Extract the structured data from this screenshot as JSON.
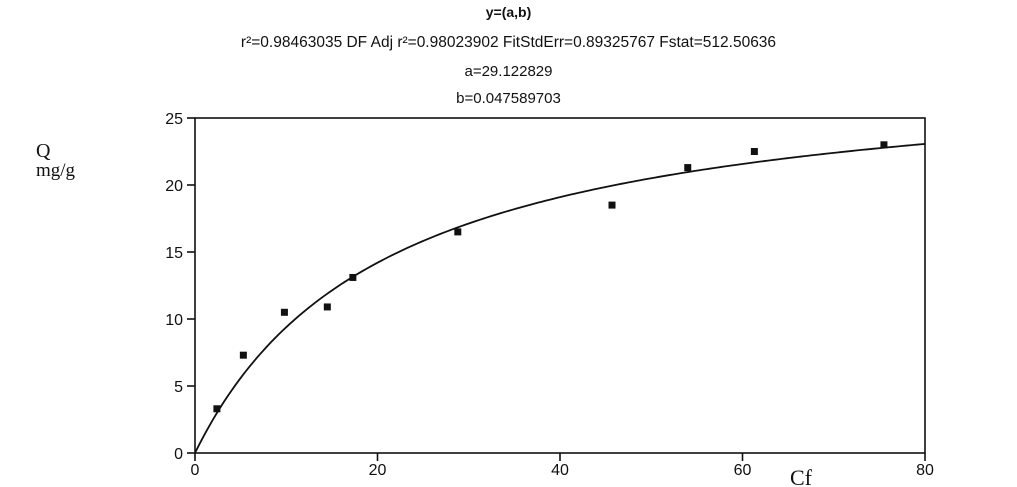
{
  "header": {
    "equation": "y=(a,b)",
    "stats": "r²=0.98463035  DF Adj r²=0.98023902  FitStdErr=0.89325767  Fstat=512.50636",
    "param_a": "a=29.122829",
    "param_b": "b=0.047589703"
  },
  "chart_data": {
    "type": "scatter",
    "title": "y=(a,b)",
    "xlabel": "Cf",
    "ylabel": "Q mg/g",
    "ylabel_line1": "Q",
    "ylabel_line2": "mg/g",
    "xlim": [
      0,
      80
    ],
    "ylim": [
      0,
      25
    ],
    "x_ticks": [
      0,
      20,
      40,
      60,
      80
    ],
    "y_ticks": [
      0,
      5,
      10,
      15,
      20,
      25
    ],
    "grid": false,
    "series": [
      {
        "x": [
          2.4,
          5.3,
          9.8,
          14.5,
          17.3,
          28.8,
          45.7,
          54.0,
          61.3,
          75.5
        ],
        "y": [
          3.3,
          7.3,
          10.5,
          10.9,
          13.1,
          16.5,
          18.5,
          21.3,
          22.5,
          23.0
        ]
      }
    ],
    "fit_curve": {
      "model": "a*b*x/(1+b*x)",
      "a": 29.122829,
      "b": 0.047589703
    }
  }
}
